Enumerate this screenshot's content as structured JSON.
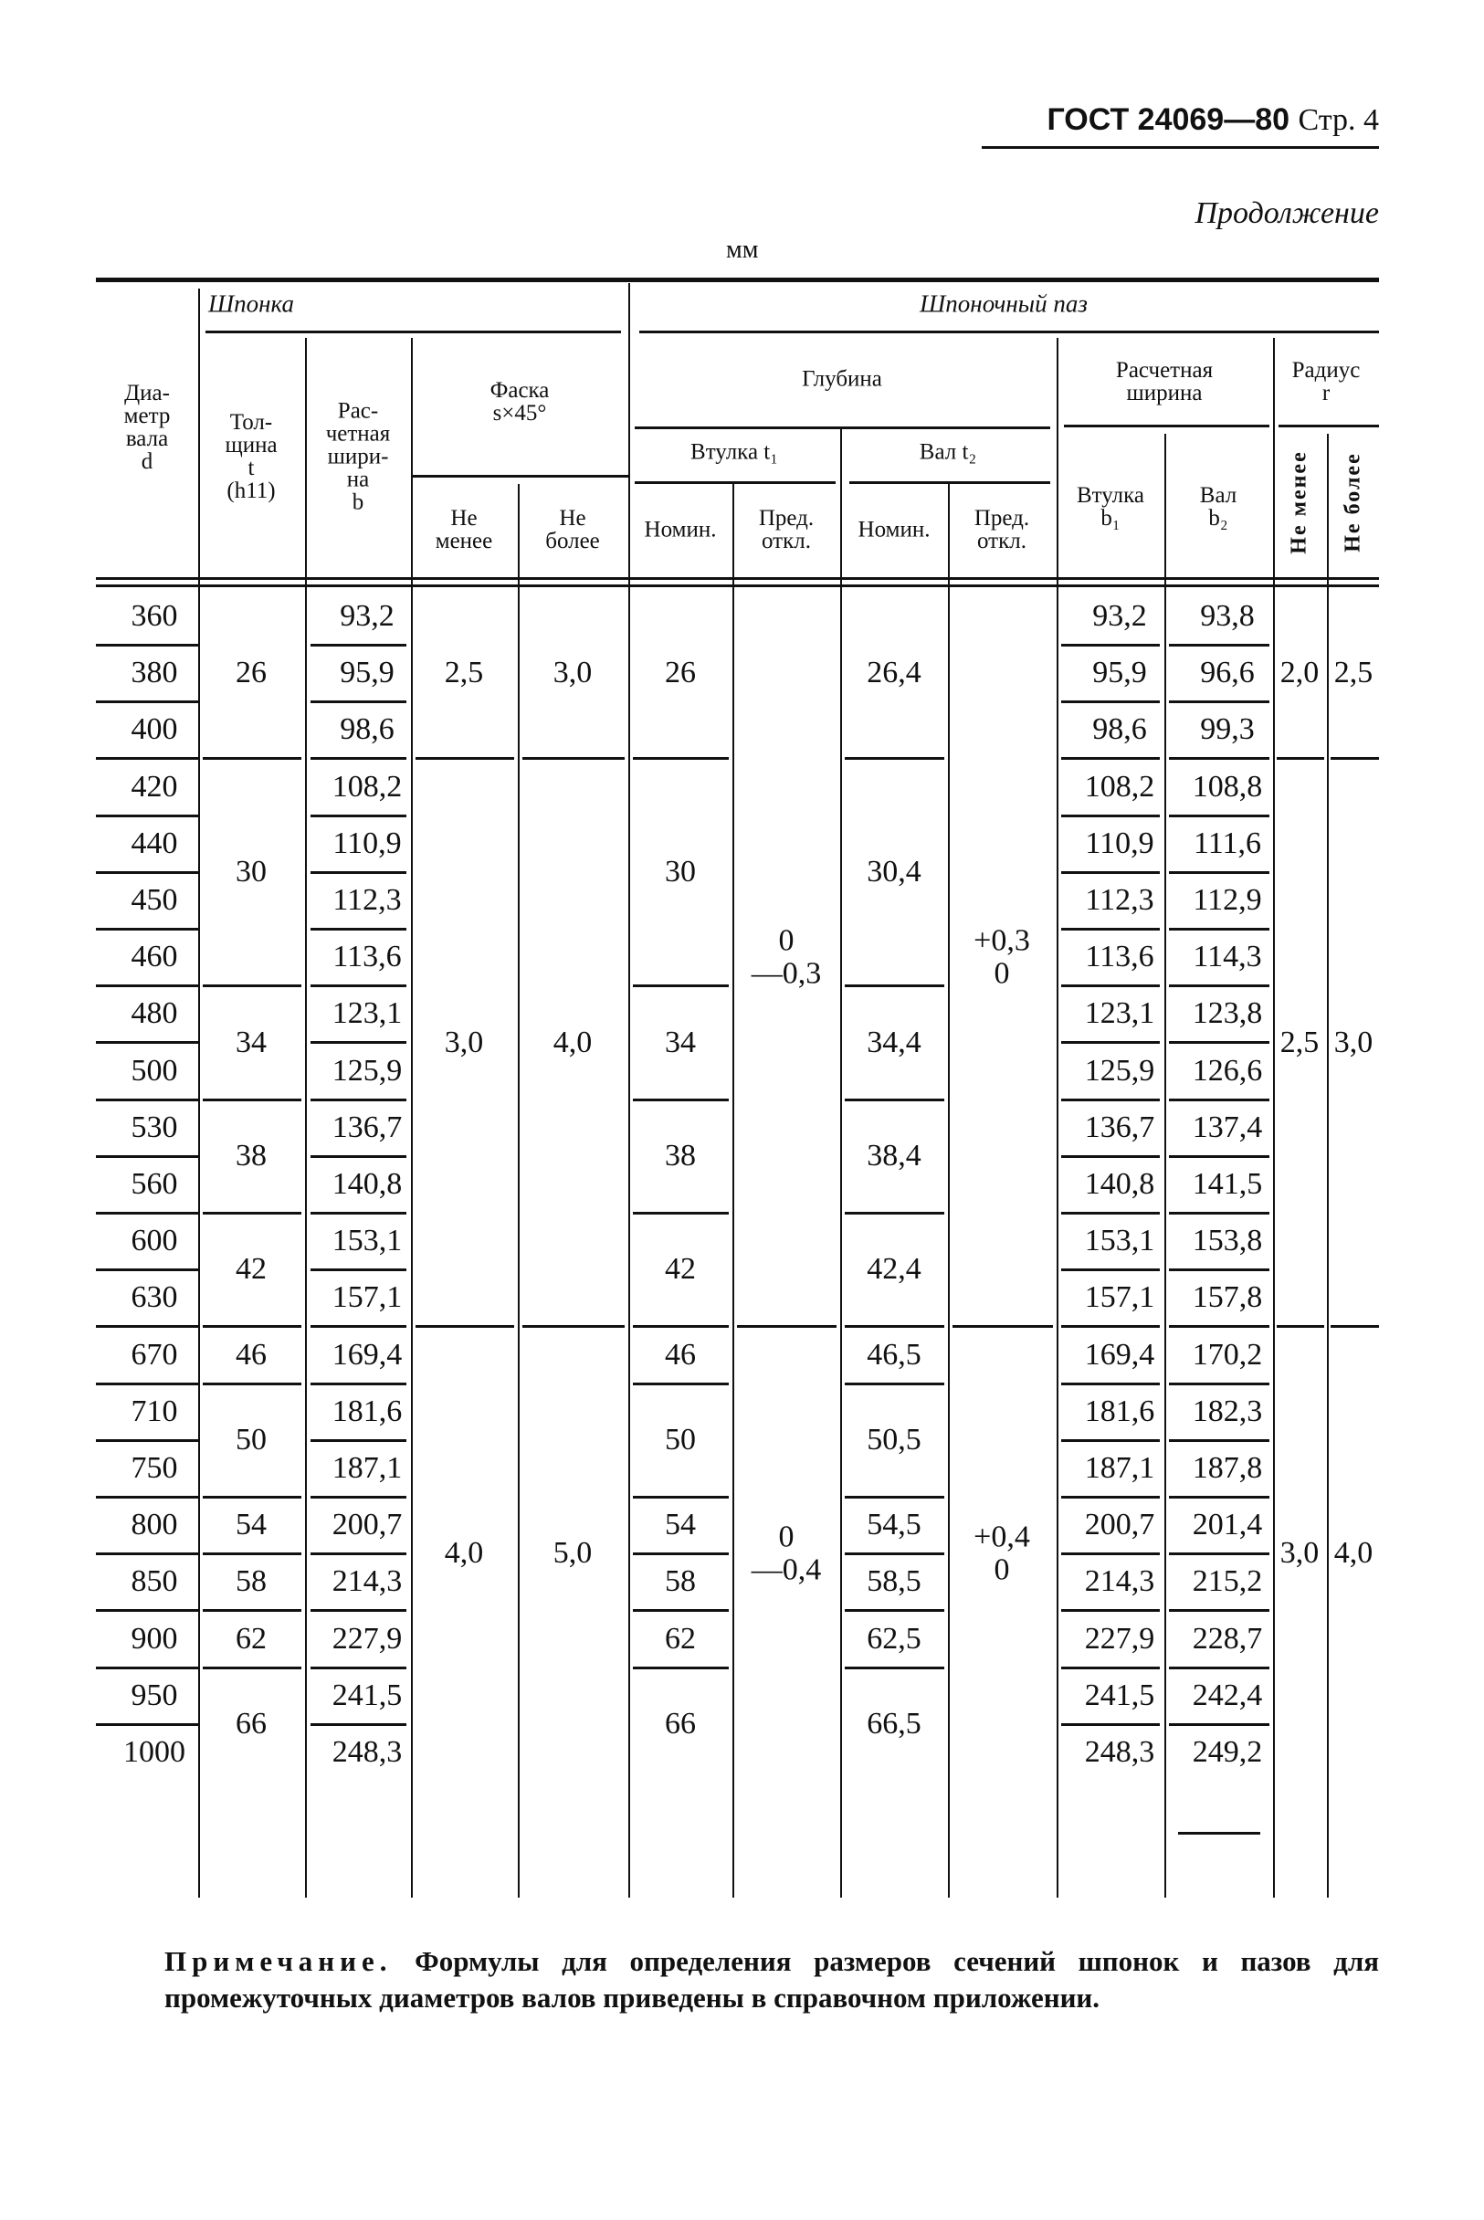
{
  "header": {
    "standard": "ГОСТ 24069—80",
    "page": "Стр. 4",
    "continuation": "Продолжение",
    "units": "мм"
  },
  "columns": {
    "diameter": "Диа-\nметр\nвала\nd",
    "key": "Шпонка",
    "thickness": "Тол-\nщина\nt\n(h11)",
    "calc_width": "Рас-\nчетная\nшири-\nна\nb",
    "chamfer": "Фаска\ns×45°",
    "not_less": "Не\nменее",
    "not_more": "Не\nболее",
    "keyway": "Шпоночный паз",
    "depth": "Глубина",
    "hub_t1": "Втулка t₁",
    "shaft_t2": "Вал t₂",
    "nominal": "Номин.",
    "tolerance": "Пред.\nоткл.",
    "calc_width2": "Расчетная\nширина",
    "hub_b1": "Втулка\nb₁",
    "shaft_b2": "Вал\nb₂",
    "radius": "Радиус\nr",
    "r_not_less": "Не менее",
    "r_not_more": "Не более"
  },
  "rows": [
    {
      "d": "360",
      "b": "93,2",
      "b1": "93,2",
      "b2": "93,8"
    },
    {
      "d": "380",
      "b": "95,9",
      "b1": "95,9",
      "b2": "96,6"
    },
    {
      "d": "400",
      "b": "98,6",
      "b1": "98,6",
      "b2": "99,3"
    },
    {
      "d": "420",
      "b": "108,2",
      "b1": "108,2",
      "b2": "108,8"
    },
    {
      "d": "440",
      "b": "110,9",
      "b1": "110,9",
      "b2": "111,6"
    },
    {
      "d": "450",
      "b": "112,3",
      "b1": "112,3",
      "b2": "112,9"
    },
    {
      "d": "460",
      "b": "113,6",
      "b1": "113,6",
      "b2": "114,3"
    },
    {
      "d": "480",
      "b": "123,1",
      "b1": "123,1",
      "b2": "123,8"
    },
    {
      "d": "500",
      "b": "125,9",
      "b1": "125,9",
      "b2": "126,6"
    },
    {
      "d": "530",
      "b": "136,7",
      "b1": "136,7",
      "b2": "137,4"
    },
    {
      "d": "560",
      "b": "140,8",
      "b1": "140,8",
      "b2": "141,5"
    },
    {
      "d": "600",
      "b": "153,1",
      "b1": "153,1",
      "b2": "153,8"
    },
    {
      "d": "630",
      "b": "157,1",
      "b1": "157,1",
      "b2": "157,8"
    },
    {
      "d": "670",
      "b": "169,4",
      "b1": "169,4",
      "b2": "170,2"
    },
    {
      "d": "710",
      "b": "181,6",
      "b1": "181,6",
      "b2": "182,3"
    },
    {
      "d": "750",
      "b": "187,1",
      "b1": "187,1",
      "b2": "187,8"
    },
    {
      "d": "800",
      "b": "200,7",
      "b1": "200,7",
      "b2": "201,4"
    },
    {
      "d": "850",
      "b": "214,3",
      "b1": "214,3",
      "b2": "215,2"
    },
    {
      "d": "900",
      "b": "227,9",
      "b1": "227,9",
      "b2": "228,7"
    },
    {
      "d": "950",
      "b": "241,5",
      "b1": "241,5",
      "b2": "242,4"
    },
    {
      "d": "1000",
      "b": "248,3",
      "b1": "248,3",
      "b2": "249,2"
    }
  ],
  "groups": {
    "t": [
      {
        "span": 3,
        "v": "26"
      },
      {
        "span": 4,
        "v": "30"
      },
      {
        "span": 2,
        "v": "34"
      },
      {
        "span": 2,
        "v": "38"
      },
      {
        "span": 2,
        "v": "42"
      },
      {
        "span": 1,
        "v": "46"
      },
      {
        "span": 2,
        "v": "50"
      },
      {
        "span": 1,
        "v": "54"
      },
      {
        "span": 1,
        "v": "58"
      },
      {
        "span": 1,
        "v": "62"
      },
      {
        "span": 2,
        "v": "66"
      }
    ],
    "t1": [
      {
        "span": 3,
        "v": "26"
      },
      {
        "span": 4,
        "v": "30"
      },
      {
        "span": 2,
        "v": "34"
      },
      {
        "span": 2,
        "v": "38"
      },
      {
        "span": 2,
        "v": "42"
      },
      {
        "span": 1,
        "v": "46"
      },
      {
        "span": 2,
        "v": "50"
      },
      {
        "span": 1,
        "v": "54"
      },
      {
        "span": 1,
        "v": "58"
      },
      {
        "span": 1,
        "v": "62"
      },
      {
        "span": 2,
        "v": "66"
      }
    ],
    "t2": [
      {
        "span": 3,
        "v": "26,4"
      },
      {
        "span": 4,
        "v": "30,4"
      },
      {
        "span": 2,
        "v": "34,4"
      },
      {
        "span": 2,
        "v": "38,4"
      },
      {
        "span": 2,
        "v": "42,4"
      },
      {
        "span": 1,
        "v": "46,5"
      },
      {
        "span": 2,
        "v": "50,5"
      },
      {
        "span": 1,
        "v": "54,5"
      },
      {
        "span": 1,
        "v": "58,5"
      },
      {
        "span": 1,
        "v": "62,5"
      },
      {
        "span": 2,
        "v": "66,5"
      }
    ],
    "chamfer_min": [
      {
        "span": 3,
        "v": "2,5"
      },
      {
        "span": 10,
        "v": "3,0"
      },
      {
        "span": 8,
        "v": "4,0"
      }
    ],
    "chamfer_max": [
      {
        "span": 3,
        "v": "3,0"
      },
      {
        "span": 10,
        "v": "4,0"
      },
      {
        "span": 8,
        "v": "5,0"
      }
    ],
    "t1_tol": [
      {
        "span": 13,
        "v": "0\n—0,3"
      },
      {
        "span": 8,
        "v": "0\n—0,4"
      }
    ],
    "t2_tol": [
      {
        "span": 13,
        "v": "+0,3\n0"
      },
      {
        "span": 8,
        "v": "+0,4\n0"
      }
    ],
    "r_min": [
      {
        "span": 3,
        "v": "2,0"
      },
      {
        "span": 10,
        "v": "2,5"
      },
      {
        "span": 8,
        "v": "3,0"
      }
    ],
    "r_max": [
      {
        "span": 3,
        "v": "2,5"
      },
      {
        "span": 10,
        "v": "3,0"
      },
      {
        "span": 8,
        "v": "4,0"
      }
    ]
  },
  "note": {
    "label": "Примечание.",
    "text": " Формулы для определения размеров сечений шпонок и пазов для промежуточных диаметров валов приведены в справочном приложении."
  }
}
